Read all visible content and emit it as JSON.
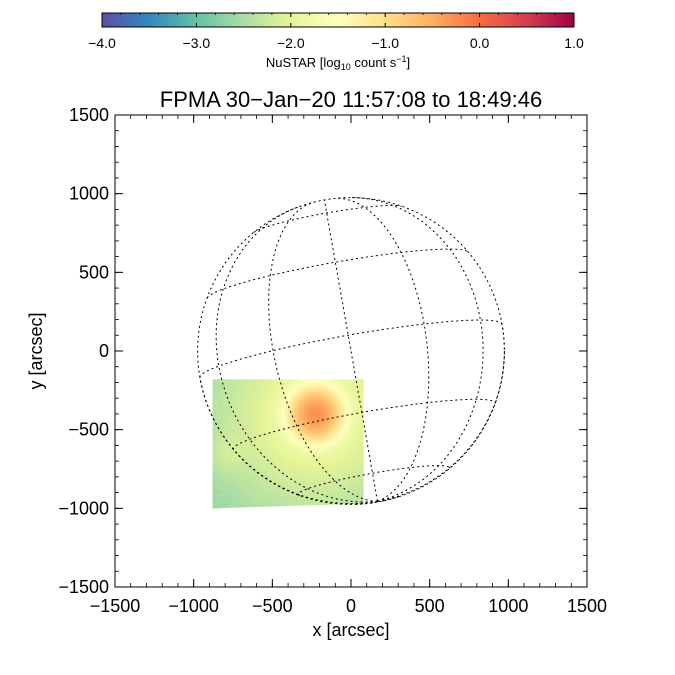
{
  "chart_data": {
    "type": "heatmap",
    "title": "FPMA 30−Jan−20 11:57:08 to 18:49:46",
    "xlabel": "x [arcsec]",
    "ylabel": "y [arcsec]",
    "xlim": [
      -1500,
      1500
    ],
    "ylim": [
      -1500,
      1500
    ],
    "x_ticks": [
      -1500,
      -1000,
      -500,
      0,
      500,
      1000,
      1500
    ],
    "y_ticks": [
      -1500,
      -1000,
      -500,
      0,
      500,
      1000,
      1500
    ],
    "x_tick_labels": [
      "−1500",
      "−1000",
      "−500",
      "0",
      "500",
      "1000",
      "1500"
    ],
    "y_tick_labels": [
      "−1500",
      "−1000",
      "−500",
      "0",
      "500",
      "1000",
      "1500"
    ],
    "colorbar": {
      "label_main": "NuSTAR [log",
      "label_sub": "10",
      "label_rest": " count s",
      "label_sup": "−1",
      "label_end": "]",
      "range": [
        -4.0,
        1.0
      ],
      "ticks": [
        -4.0,
        -3.0,
        -2.0,
        -1.0,
        0.0,
        1.0
      ],
      "tick_labels": [
        "−4.0",
        "−3.0",
        "−2.0",
        "−1.0",
        "0.0",
        "1.0"
      ],
      "colormap": "Spectral_r",
      "colors": [
        "#5e4fa2",
        "#3288bd",
        "#66c2a5",
        "#abdda4",
        "#e6f598",
        "#ffffbf",
        "#fee08b",
        "#fdae61",
        "#f46d43",
        "#d53e4f",
        "#9e0142"
      ]
    },
    "solar_disk": {
      "radius_arcsec": 975,
      "b0_deg": -6,
      "p_deg": 10,
      "grid": "dotted",
      "grid_spacing_deg": 30
    },
    "field_of_view": {
      "corners": [
        [
          -880,
          -180
        ],
        [
          80,
          -180
        ],
        [
          80,
          -970
        ],
        [
          -880,
          -1000
        ]
      ]
    },
    "emission_sources": [
      {
        "x": -225,
        "y": -400,
        "log_rate": -0.3,
        "sigma": 80
      },
      {
        "x": -780,
        "y": -650,
        "log_rate": -2.6,
        "sigma": 80
      }
    ],
    "background_log_rate": -3.2
  }
}
